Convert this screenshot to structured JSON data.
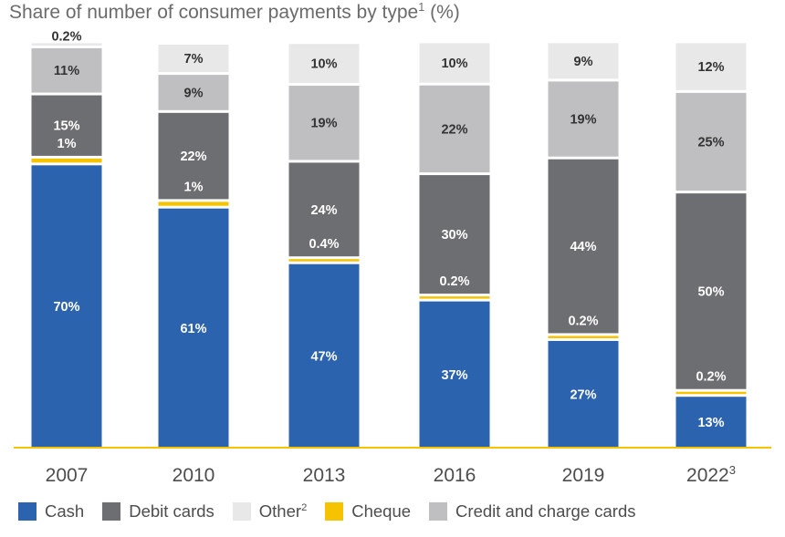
{
  "chart_data": {
    "type": "bar",
    "stacked": true,
    "title": "Share of number of consumer payments by type",
    "title_footnote": "1",
    "title_unit": " (%)",
    "categories": [
      "2007",
      "2010",
      "2013",
      "2016",
      "2019",
      "2022"
    ],
    "category_footnotes": [
      "",
      "",
      "",
      "",
      "",
      "3"
    ],
    "series": [
      {
        "name": "Cash",
        "color": "#2c63af",
        "label_color": "#ffffff",
        "values": [
          70,
          61,
          47,
          37,
          27,
          13
        ],
        "labels": [
          "70%",
          "61%",
          "47%",
          "37%",
          "27%",
          "13%"
        ]
      },
      {
        "name": "Cheque",
        "color": "#f5c300",
        "label_color": "#ffffff",
        "values": [
          1,
          1,
          0.4,
          0.2,
          0.2,
          0.2
        ],
        "labels": [
          "1%",
          "1%",
          "0.4%",
          "0.2%",
          "0.2%",
          "0.2%"
        ]
      },
      {
        "name": "Debit cards",
        "color": "#6d6e71",
        "label_color": "#ffffff",
        "values": [
          15,
          22,
          24,
          30,
          44,
          50
        ],
        "labels": [
          "15%",
          "22%",
          "24%",
          "30%",
          "44%",
          "50%"
        ]
      },
      {
        "name": "Credit and charge cards",
        "color": "#bfbfc1",
        "label_color": "#333333",
        "values": [
          11,
          9,
          19,
          22,
          19,
          25
        ],
        "labels": [
          "11%",
          "9%",
          "19%",
          "22%",
          "19%",
          "25%"
        ]
      },
      {
        "name": "Other",
        "footnote": "2",
        "color": "#e8e8e9",
        "label_color": "#333333",
        "values": [
          0.2,
          7,
          10,
          10,
          9,
          12
        ],
        "labels": [
          "0.2%",
          "7%",
          "10%",
          "10%",
          "9%",
          "12%"
        ]
      }
    ],
    "legend_order": [
      "Cash",
      "Debit cards",
      "Other",
      "Cheque",
      "Credit and charge cards"
    ],
    "legend_position": "bottom",
    "axis_color": "#f5c300",
    "grid": false
  }
}
